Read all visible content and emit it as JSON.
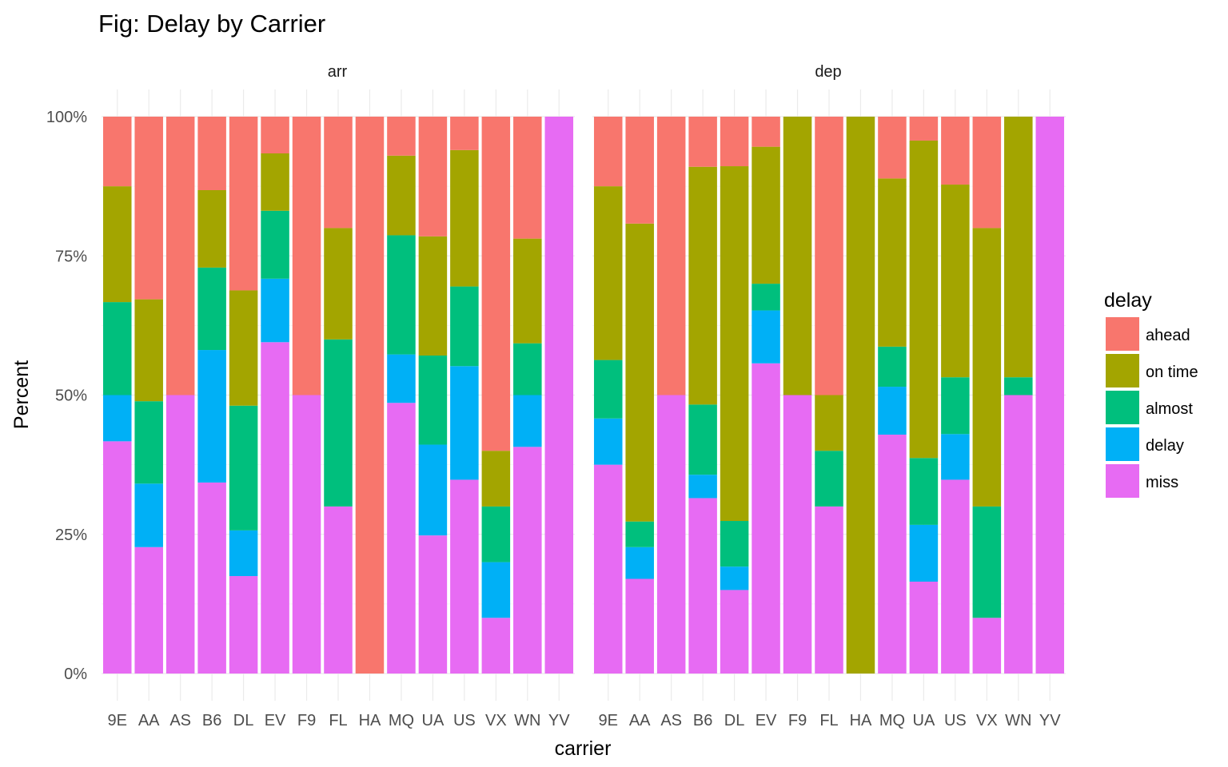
{
  "chart_data": {
    "type": "bar",
    "stacked": true,
    "title": "Fig: Delay by Carrier",
    "xlabel": "carrier",
    "ylabel": "Percent",
    "ylim": [
      0,
      1
    ],
    "y_ticks": [
      "0%",
      "25%",
      "50%",
      "75%",
      "100%"
    ],
    "categories": [
      "9E",
      "AA",
      "AS",
      "B6",
      "DL",
      "EV",
      "F9",
      "FL",
      "HA",
      "MQ",
      "UA",
      "US",
      "VX",
      "WN",
      "YV"
    ],
    "legend": {
      "title": "delay",
      "position": "right",
      "items": [
        "ahead",
        "on time",
        "almost",
        "delay",
        "miss"
      ]
    },
    "colors": {
      "ahead": "#F8766D",
      "on time": "#A3A500",
      "almost": "#00BF7D",
      "delay": "#00B0F6",
      "miss": "#E76BF3"
    },
    "grid": true,
    "stack_order_bottom_to_top": [
      "miss",
      "delay",
      "almost",
      "on time",
      "ahead"
    ],
    "facets": [
      {
        "name": "arr",
        "series": [
          {
            "name": "miss",
            "values": [
              0.417,
              0.227,
              0.5,
              0.343,
              0.175,
              0.595,
              0.5,
              0.3,
              0.0,
              0.486,
              0.248,
              0.348,
              0.1,
              0.407,
              1.0
            ]
          },
          {
            "name": "delay",
            "values": [
              0.083,
              0.114,
              0.0,
              0.238,
              0.082,
              0.114,
              0.0,
              0.0,
              0.0,
              0.087,
              0.163,
              0.204,
              0.1,
              0.093,
              0.0
            ]
          },
          {
            "name": "almost",
            "values": [
              0.167,
              0.148,
              0.0,
              0.148,
              0.224,
              0.122,
              0.0,
              0.3,
              0.0,
              0.214,
              0.16,
              0.143,
              0.1,
              0.093,
              0.0
            ]
          },
          {
            "name": "on time",
            "values": [
              0.208,
              0.183,
              0.0,
              0.139,
              0.207,
              0.103,
              0.0,
              0.2,
              0.0,
              0.143,
              0.214,
              0.245,
              0.1,
              0.188,
              0.0
            ]
          },
          {
            "name": "ahead",
            "values": [
              0.125,
              0.328,
              0.5,
              0.132,
              0.312,
              0.066,
              0.5,
              0.2,
              1.0,
              0.07,
              0.215,
              0.06,
              0.6,
              0.219,
              0.0
            ]
          }
        ]
      },
      {
        "name": "dep",
        "series": [
          {
            "name": "miss",
            "values": [
              0.375,
              0.17,
              0.5,
              0.315,
              0.15,
              0.557,
              0.5,
              0.3,
              0.0,
              0.429,
              0.165,
              0.348,
              0.1,
              0.5,
              1.0
            ]
          },
          {
            "name": "delay",
            "values": [
              0.083,
              0.057,
              0.0,
              0.042,
              0.042,
              0.095,
              0.0,
              0.0,
              0.0,
              0.086,
              0.102,
              0.082,
              0.0,
              0.0,
              0.0
            ]
          },
          {
            "name": "almost",
            "values": [
              0.105,
              0.046,
              0.0,
              0.126,
              0.082,
              0.048,
              0.0,
              0.1,
              0.0,
              0.072,
              0.12,
              0.102,
              0.2,
              0.032,
              0.0
            ]
          },
          {
            "name": "on time",
            "values": [
              0.312,
              0.535,
              0.0,
              0.427,
              0.637,
              0.246,
              0.5,
              0.1,
              1.0,
              0.302,
              0.57,
              0.346,
              0.5,
              0.468,
              0.0
            ]
          },
          {
            "name": "ahead",
            "values": [
              0.125,
              0.192,
              0.5,
              0.09,
              0.089,
              0.054,
              0.0,
              0.5,
              0.0,
              0.111,
              0.043,
              0.122,
              0.2,
              0.0,
              0.0
            ]
          }
        ]
      }
    ]
  }
}
